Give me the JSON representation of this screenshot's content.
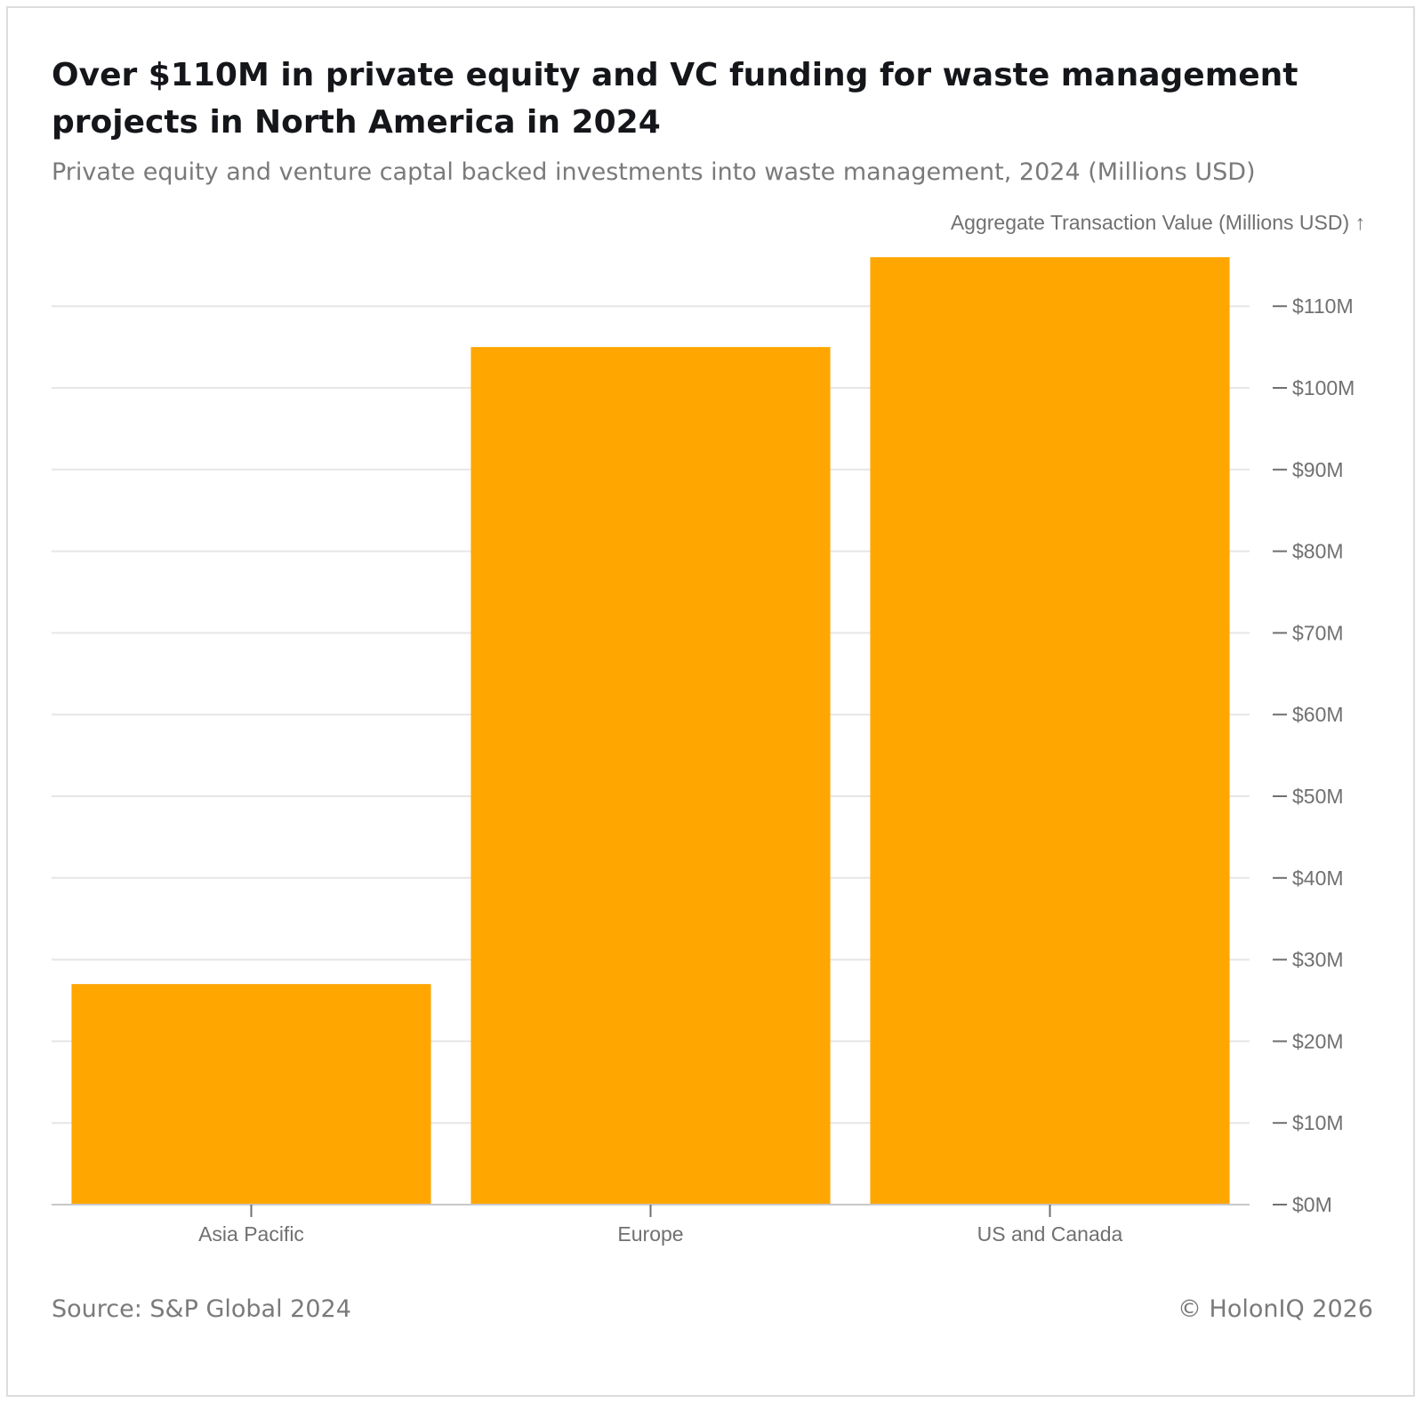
{
  "title": "Over $110M in private equity and VC funding for waste management projects in North America in 2024",
  "subtitle": "Private equity and venture captal backed investments into waste management, 2024 (Millions USD)",
  "footer": {
    "source": "Source: S&P Global 2024",
    "copyright": "© HolonIQ 2026"
  },
  "chart_data": {
    "type": "bar",
    "categories": [
      "Asia Pacific",
      "Europe",
      "US and Canada"
    ],
    "values": [
      27,
      105,
      116
    ],
    "bar_color": "#ffa600",
    "ylabel": "Aggregate Transaction Value (Millions USD) ↑",
    "xlabel": "",
    "ylim": [
      0,
      116
    ],
    "y_ticks": [
      0,
      10,
      20,
      30,
      40,
      50,
      60,
      70,
      80,
      90,
      100,
      110
    ],
    "y_tick_labels": [
      "$0M",
      "$10M",
      "$20M",
      "$30M",
      "$40M",
      "$50M",
      "$60M",
      "$70M",
      "$80M",
      "$90M",
      "$100M",
      "$110M"
    ],
    "y_axis_position": "right",
    "grid": true
  }
}
